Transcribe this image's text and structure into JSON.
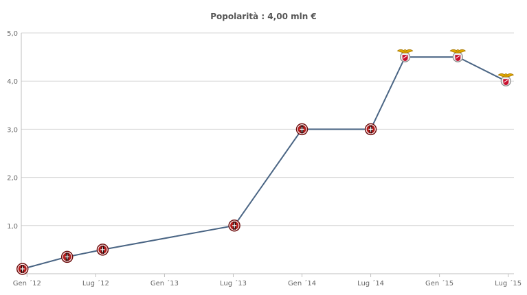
{
  "chart_data": {
    "type": "line",
    "title": "Popolarità : 4,00 mln €",
    "xlabel": "",
    "ylabel": "",
    "ylim": [
      0,
      5
    ],
    "grid": true,
    "y_ticks": [
      {
        "value": 1,
        "label": "1,0"
      },
      {
        "value": 2,
        "label": "2,0"
      },
      {
        "value": 3,
        "label": "3,0"
      },
      {
        "value": 4,
        "label": "4,0"
      },
      {
        "value": 5,
        "label": "5,0"
      }
    ],
    "x_ticks": [
      {
        "value": 0,
        "label": "Gen ´12"
      },
      {
        "value": 6,
        "label": "Lug ´12"
      },
      {
        "value": 12,
        "label": "Gen ´13"
      },
      {
        "value": 18,
        "label": "Lug ´13"
      },
      {
        "value": 24,
        "label": "Gen ´14"
      },
      {
        "value": 30,
        "label": "Lug ´14"
      },
      {
        "value": 36,
        "label": "Gen ´15"
      },
      {
        "value": 42,
        "label": "Lug ´15"
      }
    ],
    "x_unit": "months from Gen ´12",
    "xlim": [
      -0.5,
      42.5
    ],
    "series": [
      {
        "name": "",
        "color": "#4a6584",
        "points": [
          {
            "x": -0.4,
            "y": 0.1,
            "club": "milan-badge"
          },
          {
            "x": 3.5,
            "y": 0.35,
            "club": "milan-badge"
          },
          {
            "x": 6.6,
            "y": 0.5,
            "club": "milan-badge"
          },
          {
            "x": 18.1,
            "y": 1.0,
            "club": "milan-badge"
          },
          {
            "x": 24.0,
            "y": 3.0,
            "club": "milan-badge"
          },
          {
            "x": 30.0,
            "y": 3.0,
            "club": "milan-badge"
          },
          {
            "x": 33.0,
            "y": 4.5,
            "club": "benfica-badge"
          },
          {
            "x": 37.6,
            "y": 4.5,
            "club": "benfica-badge"
          },
          {
            "x": 41.8,
            "y": 4.0,
            "club": "benfica-badge"
          }
        ]
      }
    ]
  }
}
